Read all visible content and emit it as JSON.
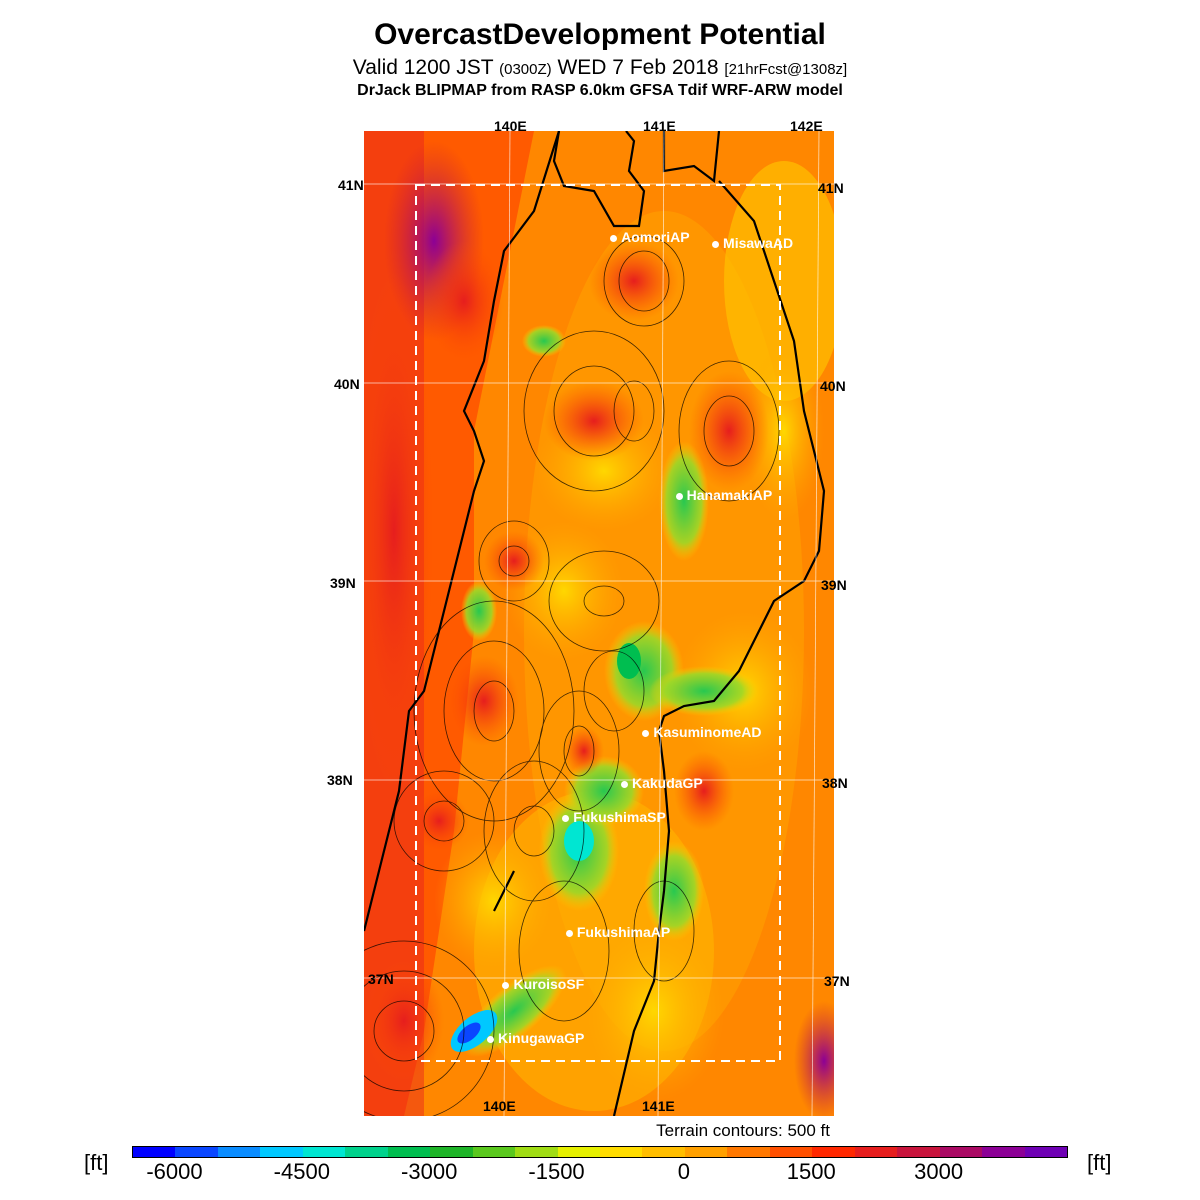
{
  "header": {
    "title": "OvercastDevelopment Potential",
    "subtitle_main": "Valid 1200 JST",
    "subtitle_zulu": "(0300Z)",
    "subtitle_date": "WED 7 Feb 2018",
    "subtitle_fcst": "[21hrFcst@1308z]",
    "model": "DrJack BLIPMAP from RASP 6.0km GFSA Tdif WRF-ARW model"
  },
  "map": {
    "lon_labels_top": [
      "140E",
      "141E",
      "142E"
    ],
    "lon_labels_bottom": [
      "140E",
      "141E"
    ],
    "lat_labels_left": [
      "41N",
      "40N",
      "39N",
      "38N",
      "37N"
    ],
    "lat_labels_right": [
      "41N",
      "40N",
      "39N",
      "38N",
      "37N"
    ],
    "stations": [
      {
        "name": "AomoriAP",
        "lat": 40.73,
        "lon": 140.69
      },
      {
        "name": "MisawaAD",
        "lat": 40.7,
        "lon": 141.37
      },
      {
        "name": "HanamakiAP",
        "lat": 39.43,
        "lon": 141.14
      },
      {
        "name": "KasuminomeAD",
        "lat": 38.24,
        "lon": 140.93
      },
      {
        "name": "KakudaGP",
        "lat": 37.98,
        "lon": 140.79
      },
      {
        "name": "FukushimaSP",
        "lat": 37.81,
        "lon": 140.4
      },
      {
        "name": "FukushimaAP",
        "lat": 37.23,
        "lon": 140.43
      },
      {
        "name": "KuroisoSF",
        "lat": 36.97,
        "lon": 140.01
      },
      {
        "name": "KinugawaGP",
        "lat": 36.7,
        "lon": 139.91
      }
    ],
    "terrain_note": "Terrain contours: 500 ft"
  },
  "legend": {
    "unit_left": "[ft]",
    "unit_right": "[ft]",
    "labels": [
      "-6000",
      "-4500",
      "-3000",
      "-1500",
      "0",
      "1500",
      "3000"
    ],
    "colors": [
      "#0000ff",
      "#0a46ff",
      "#0a8cff",
      "#00c8ff",
      "#00e6d2",
      "#00d28c",
      "#00be50",
      "#1eb428",
      "#5ac81e",
      "#a0dc14",
      "#e6f000",
      "#ffdc00",
      "#ffbe00",
      "#ffa000",
      "#ff7800",
      "#ff5000",
      "#ff2800",
      "#e61e1e",
      "#c8143c",
      "#aa0a64",
      "#8c0096",
      "#6e00b4"
    ]
  }
}
